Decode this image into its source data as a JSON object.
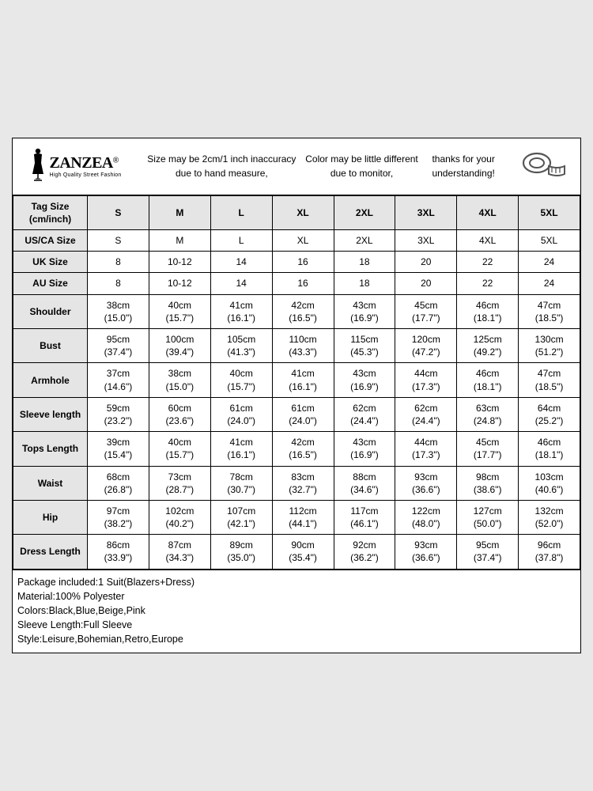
{
  "brand": {
    "name": "ZANZEA",
    "registered": "®",
    "tagline": "High Quality Street Fashion"
  },
  "notice": "Size may be 2cm/1 inch inaccuracy due to hand measure,\nColor may be little different due to monitor,\nthanks for your understanding!",
  "header_label": {
    "line1": "Tag Size",
    "line2": "(cm/inch)"
  },
  "sizes": [
    "S",
    "M",
    "L",
    "XL",
    "2XL",
    "3XL",
    "4XL",
    "5XL"
  ],
  "simple_rows": [
    {
      "label": "US/CA Size",
      "values": [
        "S",
        "M",
        "L",
        "XL",
        "2XL",
        "3XL",
        "4XL",
        "5XL"
      ]
    },
    {
      "label": "UK Size",
      "values": [
        "8",
        "10-12",
        "14",
        "16",
        "18",
        "20",
        "22",
        "24"
      ]
    },
    {
      "label": "AU Size",
      "values": [
        "8",
        "10-12",
        "14",
        "16",
        "18",
        "20",
        "22",
        "24"
      ]
    }
  ],
  "measure_rows": [
    {
      "label": "Shoulder",
      "cm": [
        "38cm",
        "40cm",
        "41cm",
        "42cm",
        "43cm",
        "45cm",
        "46cm",
        "47cm"
      ],
      "in": [
        "(15.0\")",
        "(15.7\")",
        "(16.1\")",
        "(16.5\")",
        "(16.9\")",
        "(17.7\")",
        "(18.1\")",
        "(18.5\")"
      ]
    },
    {
      "label": "Bust",
      "cm": [
        "95cm",
        "100cm",
        "105cm",
        "110cm",
        "115cm",
        "120cm",
        "125cm",
        "130cm"
      ],
      "in": [
        "(37.4\")",
        "(39.4\")",
        "(41.3\")",
        "(43.3\")",
        "(45.3\")",
        "(47.2\")",
        "(49.2\")",
        "(51.2\")"
      ]
    },
    {
      "label": "Armhole",
      "cm": [
        "37cm",
        "38cm",
        "40cm",
        "41cm",
        "43cm",
        "44cm",
        "46cm",
        "47cm"
      ],
      "in": [
        "(14.6\")",
        "(15.0\")",
        "(15.7\")",
        "(16.1\")",
        "(16.9\")",
        "(17.3\")",
        "(18.1\")",
        "(18.5\")"
      ]
    },
    {
      "label": "Sleeve length",
      "cm": [
        "59cm",
        "60cm",
        "61cm",
        "61cm",
        "62cm",
        "62cm",
        "63cm",
        "64cm"
      ],
      "in": [
        "(23.2\")",
        "(23.6\")",
        "(24.0\")",
        "(24.0\")",
        "(24.4\")",
        "(24.4\")",
        "(24.8\")",
        "(25.2\")"
      ]
    },
    {
      "label": "Tops Length",
      "cm": [
        "39cm",
        "40cm",
        "41cm",
        "42cm",
        "43cm",
        "44cm",
        "45cm",
        "46cm"
      ],
      "in": [
        "(15.4\")",
        "(15.7\")",
        "(16.1\")",
        "(16.5\")",
        "(16.9\")",
        "(17.3\")",
        "(17.7\")",
        "(18.1\")"
      ]
    },
    {
      "label": "Waist",
      "cm": [
        "68cm",
        "73cm",
        "78cm",
        "83cm",
        "88cm",
        "93cm",
        "98cm",
        "103cm"
      ],
      "in": [
        "(26.8\")",
        "(28.7\")",
        "(30.7\")",
        "(32.7\")",
        "(34.6\")",
        "(36.6\")",
        "(38.6\")",
        "(40.6\")"
      ]
    },
    {
      "label": "Hip",
      "cm": [
        "97cm",
        "102cm",
        "107cm",
        "112cm",
        "117cm",
        "122cm",
        "127cm",
        "132cm"
      ],
      "in": [
        "(38.2\")",
        "(40.2\")",
        "(42.1\")",
        "(44.1\")",
        "(46.1\")",
        "(48.0\")",
        "(50.0\")",
        "(52.0\")"
      ]
    },
    {
      "label": "Dress Length",
      "cm": [
        "86cm",
        "87cm",
        "89cm",
        "90cm",
        "92cm",
        "93cm",
        "95cm",
        "96cm"
      ],
      "in": [
        "(33.9\")",
        "(34.3\")",
        "(35.0\")",
        "(35.4\")",
        "(36.2\")",
        "(36.6\")",
        "(37.4\")",
        "(37.8\")"
      ]
    }
  ],
  "footer": [
    "Package included:1 Suit(Blazers+Dress)",
    "Material:100% Polyester",
    "Colors:Black,Blue,Beige,Pink",
    "Sleeve Length:Full Sleeve",
    "Style:Leisure,Bohemian,Retro,Europe"
  ],
  "style": {
    "header_bg": "#e5e5e5",
    "border_color": "#000000",
    "body_bg": "#e8e8e8",
    "card_bg": "#ffffff",
    "font_size_cell": 12,
    "font_size_footer": 12.5,
    "font_size_brand": 20
  }
}
